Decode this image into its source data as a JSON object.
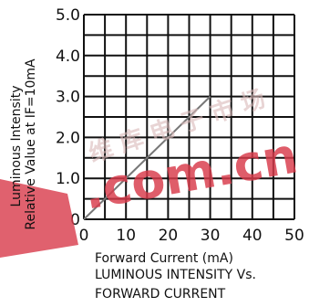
{
  "chart_data": {
    "type": "line",
    "x_ticks": [
      "0",
      "10",
      "20",
      "30",
      "40",
      "50"
    ],
    "y_ticks": [
      "0",
      "1.0",
      "2.0",
      "3.0",
      "4.0",
      "5.0"
    ],
    "xlim": [
      0,
      50
    ],
    "ylim": [
      0,
      5
    ],
    "x_minor_per_major": 2,
    "y_minor_per_major": 2,
    "grid": true,
    "xlabel": "Forward Current (mA)",
    "ylabel_lines": [
      "Luminous Intensity",
      "Relative Value at IF=10mA"
    ],
    "caption_lines": [
      "LUMINOUS INTENSITY Vs.",
      "FORWARD CURRENT"
    ],
    "series": [
      {
        "x": [
          0,
          30
        ],
        "y": [
          0,
          3.0
        ]
      }
    ]
  },
  "watermark": {
    "text": ".com.cn",
    "subtext": "维 库 电 子 市 场"
  },
  "colors": {
    "grid": "#111111",
    "series": "#777777",
    "watermark": "#d83a4a",
    "background": "#ffffff"
  }
}
